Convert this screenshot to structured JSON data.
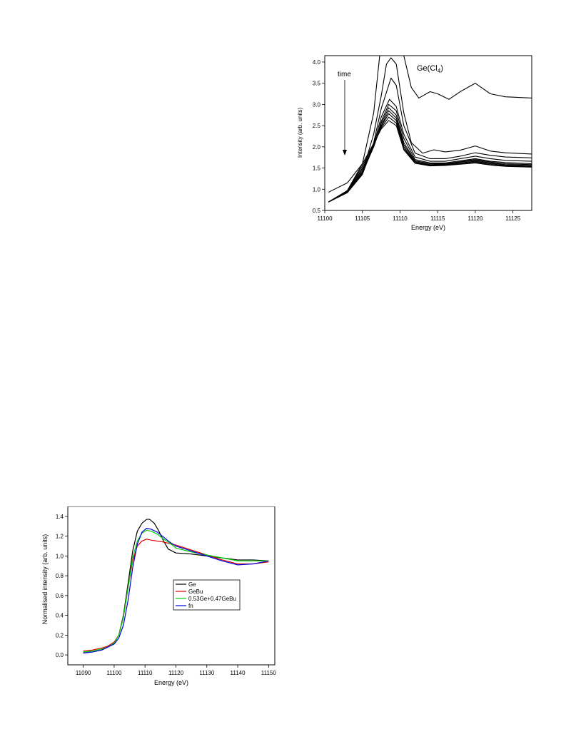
{
  "chart_data": [
    {
      "type": "line",
      "annotations": {
        "label": "Ge(Cl",
        "subscript": "4",
        "suffix": ")",
        "arrow_label": "time"
      },
      "xlabel": "Energy (eV)",
      "ylabel": "Intensity (arb. units)",
      "xlim": [
        11100,
        11127.5
      ],
      "ylim": [
        0.5,
        4.15
      ],
      "xticks": [
        11100,
        11105,
        11110,
        11115,
        11120,
        11125
      ],
      "yticks": [
        0.5,
        1.0,
        1.5,
        2.0,
        2.5,
        3.0,
        3.5,
        4.0
      ],
      "ytick_labels": [
        "0.5",
        "1.0",
        "1.5",
        "2.0",
        "2.5",
        "3.0",
        "3.5",
        "4.0"
      ],
      "series": [
        {
          "x": [
            11100.5,
            11103,
            11105,
            11106.5,
            11107.3,
            11108.5,
            11109.5,
            11110.5,
            11111.5,
            11112.5,
            11114,
            11115,
            11116.5,
            11118,
            11120,
            11122,
            11124,
            11127.5
          ],
          "y": [
            0.93,
            1.15,
            1.6,
            2.8,
            4.15,
            4.15,
            4.15,
            4.15,
            3.4,
            3.15,
            3.3,
            3.25,
            3.12,
            3.3,
            3.5,
            3.25,
            3.18,
            3.15
          ]
        },
        {
          "x": [
            11100.5,
            11103,
            11105,
            11106.5,
            11107.5,
            11108.2,
            11108.8,
            11109.5,
            11110.5,
            11111.5,
            11113,
            11114.5,
            11116,
            11118,
            11120,
            11122,
            11124,
            11127.5
          ],
          "y": [
            0.7,
            0.95,
            1.4,
            2.3,
            3.2,
            3.95,
            4.1,
            3.95,
            2.8,
            2.1,
            1.85,
            1.93,
            1.88,
            1.92,
            2.02,
            1.9,
            1.86,
            1.83
          ]
        },
        {
          "x": [
            11100.5,
            11103,
            11105,
            11106.5,
            11107.5,
            11108.8,
            11109.5,
            11110.5,
            11112,
            11114,
            11116,
            11118,
            11120,
            11122,
            11124,
            11127.5
          ],
          "y": [
            0.7,
            0.92,
            1.35,
            2.1,
            2.9,
            3.62,
            3.45,
            2.5,
            1.85,
            1.72,
            1.72,
            1.78,
            1.86,
            1.8,
            1.76,
            1.74
          ]
        },
        {
          "x": [
            11100.5,
            11103,
            11105,
            11106.5,
            11107.5,
            11108.6,
            11109.5,
            11110.5,
            11112,
            11114,
            11116,
            11118,
            11120,
            11122,
            11124,
            11127.5
          ],
          "y": [
            0.7,
            0.92,
            1.35,
            2.05,
            2.7,
            3.12,
            2.95,
            2.3,
            1.76,
            1.66,
            1.66,
            1.72,
            1.78,
            1.72,
            1.68,
            1.66
          ]
        },
        {
          "x": [
            11100.5,
            11103,
            11105,
            11106.5,
            11107.5,
            11108.5,
            11109.5,
            11110.5,
            11112,
            11114,
            11116,
            11118,
            11120,
            11122,
            11124,
            11127.5
          ],
          "y": [
            0.7,
            0.92,
            1.38,
            2.0,
            2.6,
            3.0,
            2.85,
            2.2,
            1.7,
            1.62,
            1.62,
            1.67,
            1.72,
            1.66,
            1.63,
            1.6
          ]
        },
        {
          "x": [
            11100.5,
            11103,
            11105,
            11106.5,
            11107.5,
            11108.5,
            11109.5,
            11110.5,
            11112,
            11114,
            11116,
            11118,
            11120,
            11122,
            11124,
            11127.5
          ],
          "y": [
            0.7,
            0.93,
            1.42,
            2.0,
            2.55,
            2.92,
            2.75,
            2.1,
            1.67,
            1.6,
            1.6,
            1.65,
            1.7,
            1.64,
            1.6,
            1.58
          ]
        },
        {
          "x": [
            11100.5,
            11103,
            11105,
            11106.5,
            11107.5,
            11108.5,
            11109.5,
            11110.5,
            11112,
            11114,
            11116,
            11118,
            11120,
            11122,
            11124,
            11127.5
          ],
          "y": [
            0.7,
            0.94,
            1.46,
            2.0,
            2.5,
            2.85,
            2.68,
            2.05,
            1.65,
            1.58,
            1.59,
            1.64,
            1.68,
            1.62,
            1.58,
            1.56
          ]
        },
        {
          "x": [
            11100.5,
            11103,
            11105,
            11106.5,
            11107.5,
            11108.5,
            11109.5,
            11110.5,
            11112,
            11114,
            11116,
            11118,
            11120,
            11122,
            11124,
            11127.5
          ],
          "y": [
            0.7,
            0.95,
            1.5,
            2.02,
            2.48,
            2.78,
            2.62,
            2.0,
            1.63,
            1.57,
            1.58,
            1.62,
            1.66,
            1.6,
            1.56,
            1.54
          ]
        },
        {
          "x": [
            11100.5,
            11103,
            11105,
            11106.5,
            11107.5,
            11108.5,
            11109.5,
            11110.5,
            11112,
            11114,
            11116,
            11118,
            11120,
            11122,
            11124,
            11127.5
          ],
          "y": [
            0.7,
            0.96,
            1.55,
            2.05,
            2.45,
            2.7,
            2.56,
            1.96,
            1.62,
            1.56,
            1.57,
            1.6,
            1.64,
            1.58,
            1.55,
            1.53
          ]
        },
        {
          "x": [
            11100.5,
            11103,
            11105,
            11106.5,
            11107.5,
            11108.5,
            11109.5,
            11110.5,
            11112,
            11114,
            11116,
            11118,
            11120,
            11122,
            11124,
            11127.5
          ],
          "y": [
            0.7,
            0.97,
            1.6,
            2.08,
            2.42,
            2.62,
            2.5,
            1.93,
            1.61,
            1.55,
            1.56,
            1.59,
            1.62,
            1.57,
            1.54,
            1.52
          ]
        }
      ]
    },
    {
      "type": "line",
      "xlabel": "Energy (eV)",
      "ylabel": "Normalised intensity (arb. units)",
      "xlim": [
        11085,
        11152
      ],
      "ylim": [
        -0.1,
        1.5
      ],
      "xticks": [
        11090,
        11100,
        11110,
        11120,
        11130,
        11140,
        11150
      ],
      "yticks": [
        0.0,
        0.2,
        0.4,
        0.6,
        0.8,
        1.0,
        1.2,
        1.4
      ],
      "ytick_labels": [
        "0.0",
        "0.2",
        "0.4",
        "0.6",
        "0.8",
        "1.0",
        "1.2",
        "1.4"
      ],
      "colors": [
        "#000000",
        "#e00000",
        "#00d000",
        "#0000e0"
      ],
      "series": [
        {
          "name": "Ge",
          "x": [
            11090,
            11093,
            11096,
            11098,
            11100,
            11101.5,
            11103,
            11104.5,
            11106,
            11107.5,
            11109,
            11110.5,
            11111.5,
            11113,
            11114.5,
            11116,
            11117.5,
            11120,
            11125,
            11130,
            11135,
            11140,
            11145,
            11150
          ],
          "y": [
            0.02,
            0.03,
            0.05,
            0.08,
            0.12,
            0.2,
            0.4,
            0.72,
            1.05,
            1.25,
            1.33,
            1.37,
            1.37,
            1.33,
            1.25,
            1.15,
            1.07,
            1.03,
            1.02,
            1.0,
            0.98,
            0.96,
            0.96,
            0.95
          ]
        },
        {
          "name": "GeBu",
          "x": [
            11090,
            11093,
            11096,
            11098,
            11100,
            11101.5,
            11103,
            11104.5,
            11106,
            11107.5,
            11109,
            11110.5,
            11112,
            11114,
            11116,
            11120,
            11125,
            11130,
            11135,
            11140,
            11145,
            11150
          ],
          "y": [
            0.04,
            0.05,
            0.07,
            0.09,
            0.13,
            0.2,
            0.38,
            0.68,
            0.95,
            1.1,
            1.15,
            1.17,
            1.16,
            1.15,
            1.14,
            1.11,
            1.06,
            1.01,
            0.96,
            0.92,
            0.92,
            0.94
          ]
        },
        {
          "name": "0.53Ge+0.47GeBu",
          "x": [
            11090,
            11093,
            11096,
            11098,
            11100,
            11101.5,
            11103,
            11104.5,
            11106,
            11107.5,
            11109,
            11110.5,
            11112,
            11114,
            11116,
            11118,
            11120,
            11125,
            11130,
            11135,
            11140,
            11145,
            11150
          ],
          "y": [
            0.03,
            0.04,
            0.06,
            0.08,
            0.12,
            0.2,
            0.38,
            0.68,
            0.98,
            1.15,
            1.23,
            1.26,
            1.25,
            1.22,
            1.17,
            1.13,
            1.08,
            1.04,
            1.01,
            0.98,
            0.95,
            0.95,
            0.95
          ]
        },
        {
          "name": "fn",
          "x": [
            11090,
            11093,
            11096,
            11098,
            11100,
            11101.5,
            11103,
            11104.5,
            11106,
            11107.5,
            11109,
            11110.5,
            11112,
            11114,
            11116,
            11118,
            11120,
            11125,
            11130,
            11135,
            11140,
            11145,
            11150
          ],
          "y": [
            0.02,
            0.03,
            0.05,
            0.08,
            0.11,
            0.17,
            0.3,
            0.55,
            0.88,
            1.12,
            1.24,
            1.28,
            1.27,
            1.24,
            1.19,
            1.14,
            1.1,
            1.05,
            1.0,
            0.95,
            0.91,
            0.92,
            0.95
          ]
        }
      ]
    }
  ]
}
